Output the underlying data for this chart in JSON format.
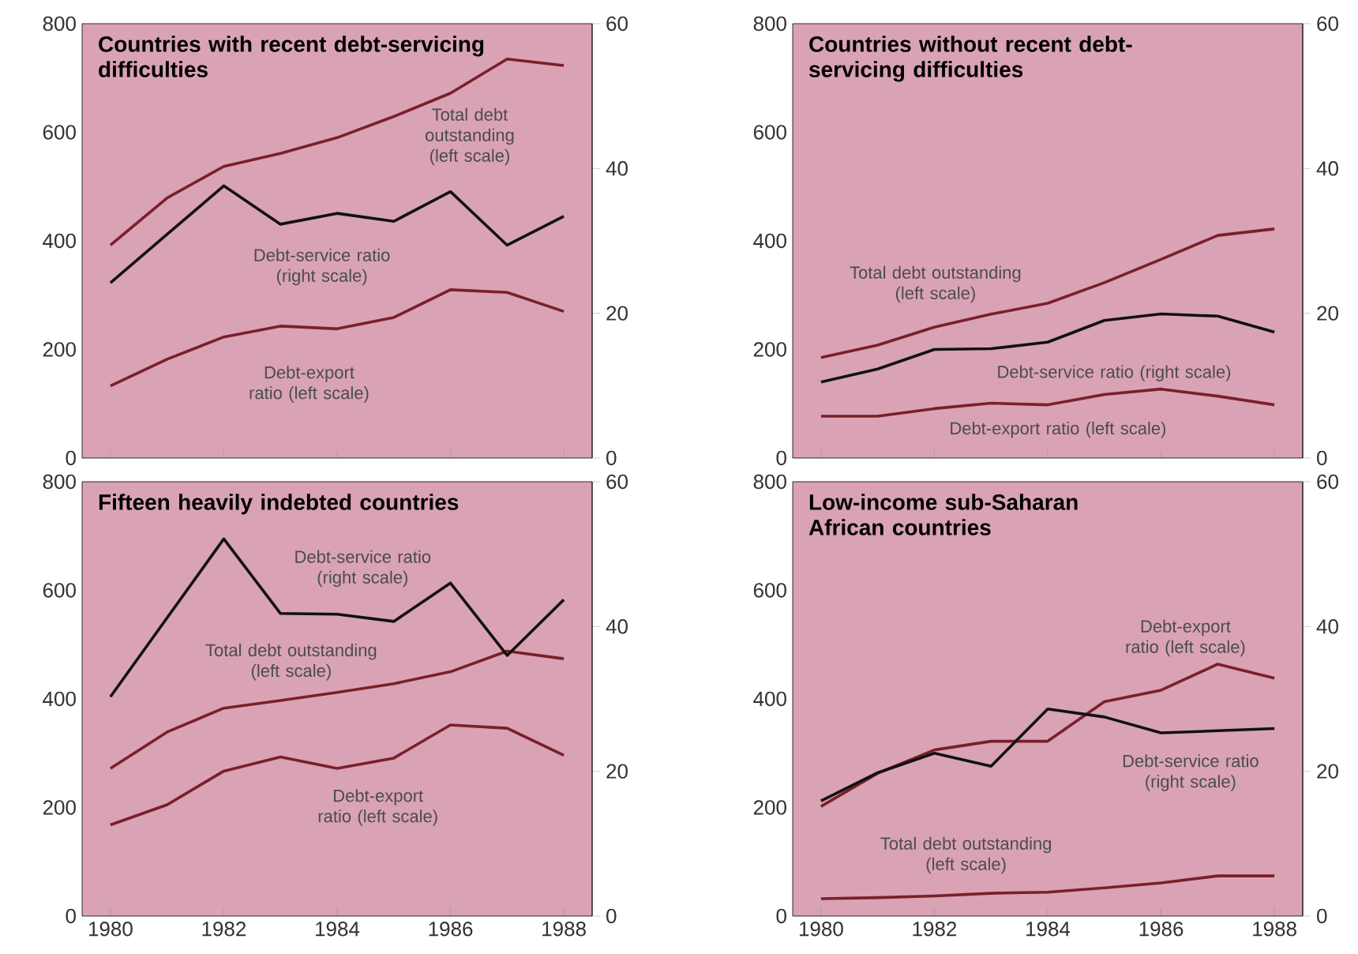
{
  "chart_data": [
    {
      "type": "line",
      "title": "Countries with recent debt-servicing difficulties",
      "x": [
        1980,
        1981,
        1982,
        1983,
        1984,
        1985,
        1986,
        1987,
        1988
      ],
      "xlim": [
        1979.5,
        1988.5
      ],
      "xticks": [
        1980,
        1982,
        1984,
        1986,
        1988
      ],
      "ylim": [
        0,
        800
      ],
      "yticks": [
        0,
        200,
        400,
        600,
        800
      ],
      "y2lim": [
        0,
        60
      ],
      "y2ticks": [
        0,
        20,
        40,
        60
      ],
      "tick_labels": "y",
      "series": [
        {
          "name": "Total debt outstanding (left scale)",
          "color": "#7a1f2b",
          "values": [
            392,
            479,
            537,
            561,
            590,
            629,
            672,
            735,
            723
          ]
        },
        {
          "name": "Debt-service ratio (right scale)",
          "color": "#111111",
          "axis": "y2",
          "values": [
            24.2,
            30.9,
            37.6,
            32.3,
            33.8,
            32.7,
            36.8,
            29.4,
            33.4
          ]
        },
        {
          "name": "Debt-export ratio (left scale)",
          "color": "#7a1f2b",
          "values": [
            133,
            182,
            223,
            243,
            238,
            259,
            310,
            305,
            270
          ]
        }
      ]
    },
    {
      "type": "line",
      "title": "Countries without recent debt-servicing difficulties",
      "x": [
        1980,
        1981,
        1982,
        1983,
        1984,
        1985,
        1986,
        1987,
        1988
      ],
      "xlim": [
        1979.5,
        1988.5
      ],
      "xticks": [
        1980,
        1982,
        1984,
        1986,
        1988
      ],
      "ylim": [
        0,
        800
      ],
      "yticks": [
        0,
        200,
        400,
        600,
        800
      ],
      "y2lim": [
        0,
        60
      ],
      "y2ticks": [
        0,
        20,
        40,
        60
      ],
      "tick_labels": "y",
      "series": [
        {
          "name": "Total debt outstanding (left scale)",
          "color": "#7a1f2b",
          "values": [
            185,
            208,
            241,
            265,
            285,
            323,
            366,
            410,
            422
          ]
        },
        {
          "name": "Debt-service ratio (right scale)",
          "color": "#111111",
          "axis": "y2",
          "values": [
            10.5,
            12.3,
            15.0,
            15.1,
            16.0,
            19.0,
            19.9,
            19.6,
            17.4
          ]
        },
        {
          "name": "Debt-export ratio (left scale)",
          "color": "#7a1f2b",
          "values": [
            77,
            77,
            91,
            101,
            98,
            117,
            127,
            114,
            98
          ]
        }
      ]
    },
    {
      "type": "line",
      "title": "Fifteen heavily indebted countries",
      "x": [
        1980,
        1981,
        1982,
        1983,
        1984,
        1985,
        1986,
        1987,
        1988
      ],
      "xlim": [
        1979.5,
        1988.5
      ],
      "xticks": [
        1980,
        1982,
        1984,
        1986,
        1988
      ],
      "ylim": [
        0,
        800
      ],
      "yticks": [
        0,
        200,
        400,
        600,
        800
      ],
      "y2lim": [
        0,
        60
      ],
      "y2ticks": [
        0,
        20,
        40,
        60
      ],
      "series": [
        {
          "name": "Debt-service ratio (right scale)",
          "color": "#111111",
          "axis": "y2",
          "values": [
            30.3,
            41.2,
            52.1,
            41.8,
            41.7,
            40.7,
            46.0,
            36.0,
            43.7
          ]
        },
        {
          "name": "Total debt outstanding (left scale)",
          "color": "#7a1f2b",
          "values": [
            272,
            339,
            383,
            397,
            412,
            428,
            450,
            488,
            474
          ]
        },
        {
          "name": "Debt-export ratio (left scale)",
          "color": "#7a1f2b",
          "values": [
            168,
            205,
            267,
            293,
            272,
            291,
            352,
            346,
            296
          ]
        }
      ]
    },
    {
      "type": "line",
      "title": "Low-income sub-Saharan African countries",
      "x": [
        1980,
        1981,
        1982,
        1983,
        1984,
        1985,
        1986,
        1987,
        1988
      ],
      "xlim": [
        1979.5,
        1988.5
      ],
      "xticks": [
        1980,
        1982,
        1984,
        1986,
        1988
      ],
      "ylim": [
        0,
        800
      ],
      "yticks": [
        0,
        200,
        400,
        600,
        800
      ],
      "y2lim": [
        0,
        60
      ],
      "y2ticks": [
        0,
        20,
        40,
        60
      ],
      "series": [
        {
          "name": "Debt-export ratio (left scale)",
          "color": "#7a1f2b",
          "values": [
            202,
            263,
            306,
            322,
            322,
            395,
            416,
            464,
            438
          ]
        },
        {
          "name": "Debt-service ratio (right scale)",
          "color": "#111111",
          "axis": "y2",
          "values": [
            15.9,
            19.8,
            22.5,
            20.7,
            28.6,
            27.5,
            25.3,
            25.6,
            25.9
          ]
        },
        {
          "name": "Total debt outstanding (left scale)",
          "color": "#7a1f2b",
          "values": [
            32,
            34,
            37,
            42,
            44,
            52,
            61,
            74,
            74
          ]
        }
      ]
    }
  ]
}
